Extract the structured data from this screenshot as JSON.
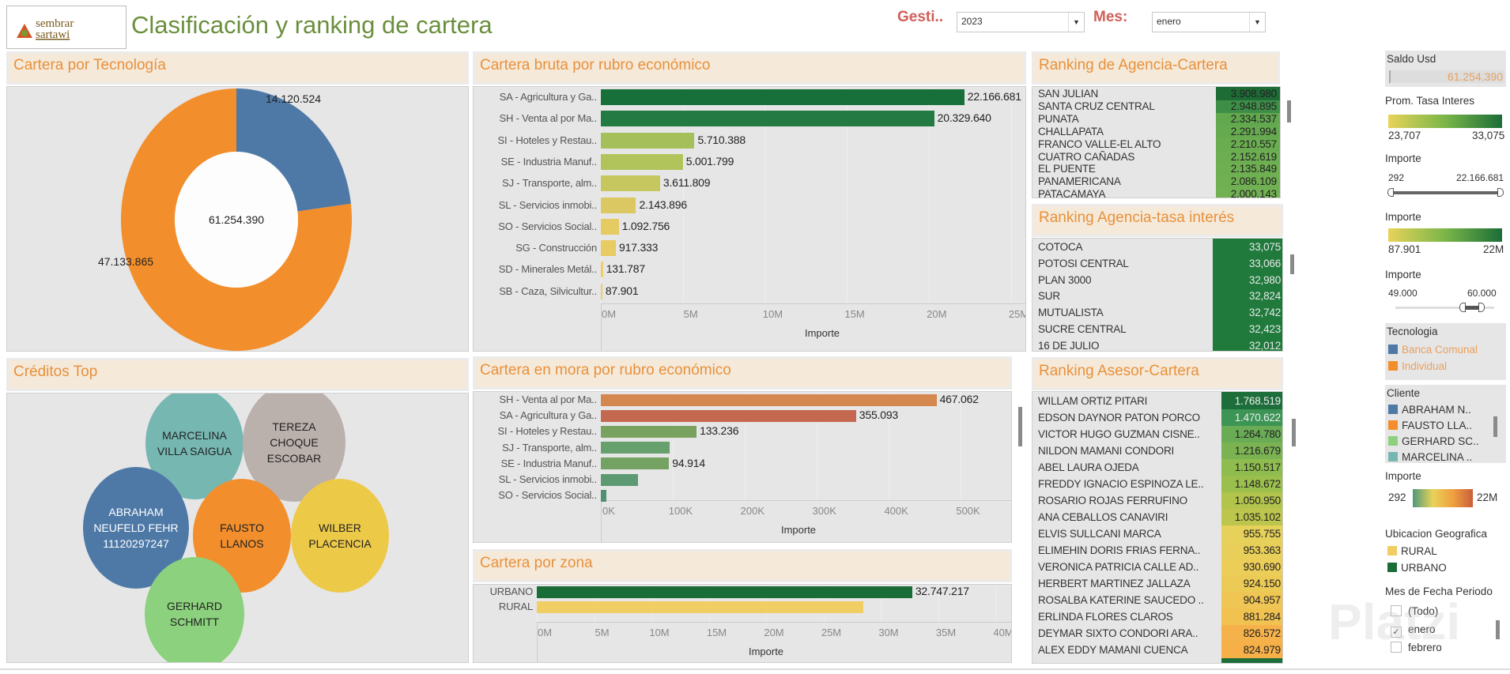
{
  "header": {
    "logo_text": "sembrar sartawi",
    "title": "Clasificación y ranking de cartera",
    "filters": [
      {
        "label": "Gesti..",
        "value": "2023"
      },
      {
        "label": "Mes:",
        "value": "enero"
      }
    ]
  },
  "panels": {
    "tecnologia": {
      "title": "Cartera por Tecnología"
    },
    "creditos": {
      "title": "Créditos Top"
    },
    "bruta": {
      "title": "Cartera bruta por rubro económico",
      "xlabel": "Importe"
    },
    "mora": {
      "title": "Cartera en mora por rubro económico",
      "xlabel": "Importe"
    },
    "zona": {
      "title": "Cartera por zona",
      "xlabel": "Importe"
    },
    "rank_agencia": {
      "title": "Ranking de Agencia-Cartera",
      "rows": [
        {
          "name": "SAN JULIAN",
          "value": "3.908.980"
        },
        {
          "name": "SANTA CRUZ CENTRAL",
          "value": "2.948.895"
        },
        {
          "name": "PUNATA",
          "value": "2.334.537"
        },
        {
          "name": "CHALLAPATA",
          "value": "2.291.994"
        },
        {
          "name": "FRANCO VALLE-EL ALTO",
          "value": "2.210.557"
        },
        {
          "name": "CUATRO CAÑADAS",
          "value": "2.152.619"
        },
        {
          "name": "EL PUENTE",
          "value": "2.135.849"
        },
        {
          "name": "PANAMERICANA",
          "value": "2.086.109"
        },
        {
          "name": "PATACAMAYA",
          "value": "2.000.143"
        }
      ]
    },
    "rank_tasa": {
      "title": "Ranking Agencia-tasa interés",
      "rows": [
        {
          "name": "COTOCA",
          "value": "33,075"
        },
        {
          "name": "POTOSI CENTRAL",
          "value": "33,066"
        },
        {
          "name": "PLAN 3000",
          "value": "32,980"
        },
        {
          "name": "SUR",
          "value": "32,824"
        },
        {
          "name": "MUTUALISTA",
          "value": "32,742"
        },
        {
          "name": "SUCRE CENTRAL",
          "value": "32,423"
        },
        {
          "name": "16 DE JULIO",
          "value": "32,012"
        }
      ]
    },
    "rank_asesor": {
      "title": "Ranking  Asesor-Cartera",
      "rows": [
        {
          "name": "WILLAM ORTIZ PITARI",
          "value": "1.768.519"
        },
        {
          "name": "EDSON DAYNOR PATON PORCO",
          "value": "1.470.622"
        },
        {
          "name": "VICTOR HUGO GUZMAN CISNE..",
          "value": "1.264.780"
        },
        {
          "name": "NILDON MAMANI CONDORI",
          "value": "1.216.679"
        },
        {
          "name": "ABEL LAURA OJEDA",
          "value": "1.150.517"
        },
        {
          "name": "FREDDY IGNACIO ESPINOZA LE..",
          "value": "1.148.672"
        },
        {
          "name": "ROSARIO ROJAS FERRUFINO",
          "value": "1.050.950"
        },
        {
          "name": "ANA CEBALLOS CANAVIRI",
          "value": "1.035.102"
        },
        {
          "name": "ELVIS SULLCANI MARCA",
          "value": "955.755"
        },
        {
          "name": "ELIMEHIN DORIS FRIAS FERNA..",
          "value": "953.363"
        },
        {
          "name": "VERONICA PATRICIA CALLE AD..",
          "value": "930.690"
        },
        {
          "name": "HERBERT MARTINEZ JALLAZA",
          "value": "924.150"
        },
        {
          "name": "ROSALBA KATERINE SAUCEDO ..",
          "value": "904.957"
        },
        {
          "name": "ERLINDA FLORES CLAROS",
          "value": "881.284"
        },
        {
          "name": "DEYMAR SIXTO CONDORI ARA..",
          "value": "826.572"
        },
        {
          "name": "ALEX EDDY MAMANI CUENCA",
          "value": "824.979"
        }
      ]
    }
  },
  "sidebar": {
    "saldo": {
      "label": "Saldo Usd",
      "value": "61.254.390"
    },
    "tasa_legend": {
      "label": "Prom. Tasa Interes",
      "min": "23,707",
      "max": "33,075"
    },
    "importe_slider1": {
      "label": "Importe",
      "min": "292",
      "max": "22.166.681",
      "range": [
        0,
        1
      ]
    },
    "importe_legend": {
      "label": "Importe",
      "min": "87.901",
      "max": "22M"
    },
    "importe_slider2": {
      "label": "Importe",
      "min": "49.000",
      "max": "60.000",
      "range": [
        0.62,
        0.88
      ]
    },
    "tecnologia": {
      "label": "Tecnologia",
      "items": [
        {
          "name": "Banca Comunal",
          "color": "#4e79a7"
        },
        {
          "name": "Individual",
          "color": "#f28e2b"
        }
      ]
    },
    "cliente": {
      "label": "Cliente",
      "items": [
        {
          "name": "ABRAHAM N..",
          "color": "#4e79a7"
        },
        {
          "name": "FAUSTO LLA..",
          "color": "#f28e2b"
        },
        {
          "name": "GERHARD SC..",
          "color": "#8cd17d"
        },
        {
          "name": "MARCELINA ..",
          "color": "#76b7b2"
        }
      ]
    },
    "importe_div": {
      "label": "Importe",
      "min": "292",
      "max": "22M"
    },
    "ubicacion": {
      "label": "Ubicacion Geografica",
      "items": [
        {
          "name": "RURAL",
          "color": "#f1ce63"
        },
        {
          "name": "URBANO",
          "color": "#1b6d38"
        }
      ]
    },
    "mes": {
      "label": "Mes de Fecha Periodo",
      "items": [
        {
          "name": "(Todo)",
          "checked": false
        },
        {
          "name": "enero",
          "checked": true
        },
        {
          "name": "febrero",
          "checked": false
        }
      ]
    }
  },
  "watermark": "Platzi",
  "chart_data": [
    {
      "type": "pie",
      "title": "Cartera por Tecnología",
      "center_label": "61.254.390",
      "slices": [
        {
          "name": "Banca Comunal",
          "value": 14120524,
          "label": "14.120.524",
          "color": "#4e79a7"
        },
        {
          "name": "Individual",
          "value": 47133865,
          "label": "47.133.865",
          "color": "#f28e2b"
        }
      ]
    },
    {
      "type": "bubble",
      "title": "Créditos Top",
      "bubbles": [
        {
          "label": "MARCELINA\nVILLA SAIGUA",
          "color": "#76b7b2"
        },
        {
          "label": "TEREZA\nCHOQUE\nESCOBAR",
          "color": "#bab0ac"
        },
        {
          "label": "ABRAHAM\nNEUFELD FEHR\n11120297247",
          "color": "#4e79a7"
        },
        {
          "label": "FAUSTO\nLLANOS",
          "color": "#f28e2b"
        },
        {
          "label": "WILBER\nPLACENCIA",
          "color": "#edc948"
        },
        {
          "label": "GERHARD\nSCHMITT",
          "color": "#8cd17d"
        }
      ]
    },
    {
      "type": "bar",
      "orientation": "horizontal",
      "title": "Cartera bruta por rubro económico",
      "xlabel": "Importe",
      "xlim": [
        0,
        27000000
      ],
      "ticks": [
        "0M",
        "5M",
        "10M",
        "15M",
        "20M",
        "25M"
      ],
      "tick_values": [
        0,
        5000000,
        10000000,
        15000000,
        20000000,
        25000000
      ],
      "categories": [
        "SA - Agricultura y Ga..",
        "SH - Venta al por Ma..",
        "SI - Hoteles y Restau..",
        "SE - Industria Manuf..",
        "SJ - Transporte, alm..",
        "SL - Servicios inmobi..",
        "SO - Servicios Social..",
        "SG - Construcción",
        "SD - Minerales Metál..",
        "SB - Caza, Silvicultur.."
      ],
      "values": [
        22166681,
        20329640,
        5710388,
        5001799,
        3611809,
        2143896,
        1092756,
        917333,
        131787,
        87901
      ],
      "labels": [
        "22.166.681",
        "20.329.640",
        "5.710.388",
        "5.001.799",
        "3.611.809",
        "2.143.896",
        "1.092.756",
        "917.333",
        "131.787",
        "87.901"
      ],
      "colors": [
        "#17703a",
        "#237a42",
        "#a5c05a",
        "#b0c45b",
        "#c6c85f",
        "#dcc862",
        "#e6ca62",
        "#e9cb63",
        "#edce68",
        "#edce68"
      ]
    },
    {
      "type": "bar",
      "orientation": "horizontal",
      "title": "Cartera en mora por rubro económico",
      "xlabel": "Importe",
      "xlim": [
        0,
        550000
      ],
      "ticks": [
        "0K",
        "100K",
        "200K",
        "300K",
        "400K",
        "500K"
      ],
      "tick_values": [
        0,
        100000,
        200000,
        300000,
        400000,
        500000
      ],
      "categories": [
        "SH - Venta al por Ma..",
        "SA - Agricultura y Ga..",
        "SI - Hoteles y Restau..",
        "SJ - Transporte, alm..",
        "SE - Industria Manuf..",
        "SL - Servicios inmobi..",
        "SO - Servicios Social.."
      ],
      "values": [
        467062,
        355093,
        133236,
        95500,
        94914,
        52000,
        8011
      ],
      "labels": [
        "467.062",
        "355.093",
        "133.236",
        "",
        "94.914",
        "",
        ""
      ],
      "colors": [
        "#d4874e",
        "#c4694f",
        "#79a260",
        "#66a06c",
        "#74a262",
        "#5d9a73",
        "#4f9170"
      ]
    },
    {
      "type": "bar",
      "orientation": "horizontal",
      "title": "Cartera por zona",
      "xlabel": "Importe",
      "xlim": [
        0,
        40000000
      ],
      "ticks": [
        "0M",
        "5M",
        "10M",
        "15M",
        "20M",
        "25M",
        "30M",
        "35M",
        "40M"
      ],
      "tick_values": [
        0,
        5000000,
        10000000,
        15000000,
        20000000,
        25000000,
        30000000,
        35000000,
        40000000
      ],
      "categories": [
        "URBANO",
        "RURAL"
      ],
      "values": [
        32747217,
        28507173
      ],
      "labels": [
        "32.747.217",
        ""
      ],
      "colors": [
        "#1b6d38",
        "#f1ce63"
      ]
    }
  ]
}
